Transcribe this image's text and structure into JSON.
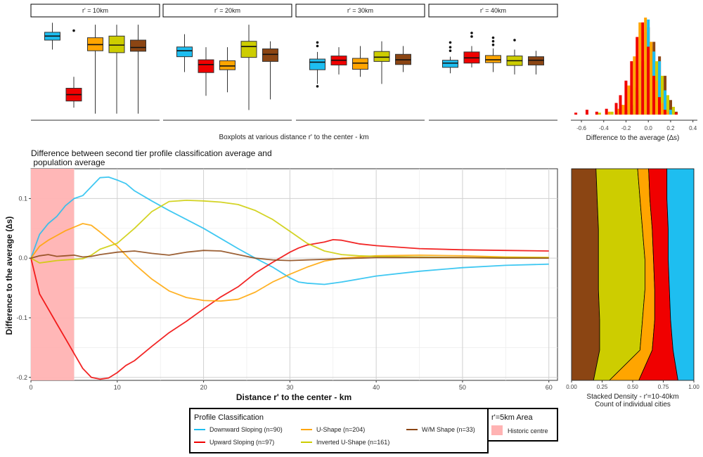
{
  "colors": {
    "downward": "#1EBEF0",
    "upward": "#F00000",
    "ushape": "#FFA500",
    "inverted": "#CDCD00",
    "wm": "#8B4513",
    "historic": "#FFB3B3"
  },
  "boxplots": {
    "caption": "Boxplots at various distance r' to the center - km",
    "panels": [
      {
        "label": "r' = 10km",
        "boxes": [
          {
            "series": "downward",
            "wlo": 0.045,
            "q1": 0.085,
            "med": 0.102,
            "q3": 0.118,
            "whi": 0.158,
            "outliers": []
          },
          {
            "series": "upward",
            "wlo": -0.2,
            "q1": -0.172,
            "med": -0.145,
            "q3": -0.118,
            "whi": -0.07,
            "outliers": [
              0.125
            ]
          },
          {
            "series": "ushape",
            "wlo": -0.225,
            "q1": 0.04,
            "med": 0.066,
            "q3": 0.095,
            "whi": 0.15,
            "outliers": []
          },
          {
            "series": "inverted",
            "wlo": -0.225,
            "q1": 0.032,
            "med": 0.064,
            "q3": 0.102,
            "whi": 0.15,
            "outliers": []
          },
          {
            "series": "wm",
            "wlo": -0.225,
            "q1": 0.038,
            "med": 0.054,
            "q3": 0.085,
            "whi": 0.15,
            "outliers": []
          }
        ]
      },
      {
        "label": "r' = 20km",
        "boxes": [
          {
            "series": "downward",
            "wlo": -0.05,
            "q1": 0.015,
            "med": 0.04,
            "q3": 0.056,
            "whi": 0.11,
            "outliers": []
          },
          {
            "series": "upward",
            "wlo": -0.15,
            "q1": -0.052,
            "med": -0.018,
            "q3": 0.002,
            "whi": 0.055,
            "outliers": []
          },
          {
            "series": "ushape",
            "wlo": -0.135,
            "q1": -0.04,
            "med": -0.024,
            "q3": -0.002,
            "whi": 0.055,
            "outliers": []
          },
          {
            "series": "inverted",
            "wlo": -0.21,
            "q1": 0.012,
            "med": 0.058,
            "q3": 0.08,
            "whi": 0.15,
            "outliers": []
          },
          {
            "series": "wm",
            "wlo": -0.165,
            "q1": -0.005,
            "med": 0.025,
            "q3": 0.048,
            "whi": 0.08,
            "outliers": []
          }
        ]
      },
      {
        "label": "r' = 30km",
        "boxes": [
          {
            "series": "downward",
            "wlo": -0.1,
            "q1": -0.04,
            "med": -0.008,
            "q3": 0.005,
            "whi": 0.035,
            "outliers": [
              0.06,
              0.075,
              -0.11
            ]
          },
          {
            "series": "upward",
            "wlo": -0.06,
            "q1": -0.02,
            "med": 0.0,
            "q3": 0.018,
            "whi": 0.055,
            "outliers": []
          },
          {
            "series": "ushape",
            "wlo": -0.07,
            "q1": -0.038,
            "med": -0.012,
            "q3": 0.008,
            "whi": 0.06,
            "outliers": []
          },
          {
            "series": "inverted",
            "wlo": -0.1,
            "q1": -0.005,
            "med": 0.013,
            "q3": 0.037,
            "whi": 0.08,
            "outliers": []
          },
          {
            "series": "wm",
            "wlo": -0.05,
            "q1": -0.018,
            "med": 0.002,
            "q3": 0.025,
            "whi": 0.06,
            "outliers": []
          }
        ]
      },
      {
        "label": "r' = 40km",
        "boxes": [
          {
            "series": "downward",
            "wlo": -0.055,
            "q1": -0.03,
            "med": -0.012,
            "q3": 0.0,
            "whi": 0.015,
            "outliers": [
              0.04,
              0.055,
              0.075
            ]
          },
          {
            "series": "upward",
            "wlo": -0.03,
            "q1": -0.012,
            "med": 0.01,
            "q3": 0.035,
            "whi": 0.06,
            "outliers": [
              0.1,
              0.115
            ]
          },
          {
            "series": "ushape",
            "wlo": -0.05,
            "q1": -0.01,
            "med": 0.002,
            "q3": 0.02,
            "whi": 0.05,
            "outliers": [
              0.065,
              0.08,
              0.095
            ]
          },
          {
            "series": "inverted",
            "wlo": -0.06,
            "q1": -0.022,
            "med": -0.002,
            "q3": 0.018,
            "whi": 0.045,
            "outliers": [
              0.085
            ]
          },
          {
            "series": "wm",
            "wlo": -0.06,
            "q1": -0.02,
            "med": 0.0,
            "q3": 0.015,
            "whi": 0.04,
            "outliers": []
          }
        ]
      }
    ]
  },
  "histogram": {
    "xlabel": "Difference to the average (∆s)",
    "xticks": [
      "-0.6",
      "-0.4",
      "-0.2",
      "0.0",
      "0.2",
      "0.4"
    ],
    "xlim": [
      -0.72,
      0.44
    ],
    "bins": [
      {
        "center": -0.65,
        "upward": 0.02
      },
      {
        "center": -0.55,
        "upward": 0.05
      },
      {
        "center": -0.45,
        "upward": 0.03,
        "inverted": 0.02
      },
      {
        "center": -0.35,
        "upward": 0.06,
        "ushape": 0.03,
        "inverted": 0.03
      },
      {
        "center": -0.25,
        "upward": 0.12,
        "ushape": 0.06,
        "inverted": 0.1,
        "wm": 0.02
      },
      {
        "center": -0.2,
        "upward": 0.2,
        "ushape": 0.1,
        "inverted": 0.15,
        "downward": 0.05,
        "wm": 0.06
      },
      {
        "center": -0.15,
        "upward": 0.35,
        "ushape": 0.3,
        "inverted": 0.28,
        "downward": 0.1,
        "wm": 0.2
      },
      {
        "center": -0.1,
        "upward": 0.55,
        "ushape": 0.6,
        "inverted": 0.45,
        "downward": 0.25,
        "wm": 0.55
      },
      {
        "center": -0.05,
        "upward": 0.8,
        "ushape": 0.95,
        "inverted": 0.85,
        "downward": 0.5,
        "wm": 0.9
      },
      {
        "center": 0.0,
        "upward": 0.95,
        "ushape": 1.0,
        "inverted": 0.7,
        "downward": 0.98,
        "wm": 0.75
      },
      {
        "center": 0.05,
        "upward": 0.7,
        "ushape": 0.75,
        "inverted": 0.55,
        "downward": 0.65,
        "wm": 0.6
      },
      {
        "center": 0.1,
        "upward": 0.4,
        "ushape": 0.35,
        "inverted": 0.4,
        "downward": 0.55,
        "wm": 0.4
      },
      {
        "center": 0.15,
        "upward": 0.18,
        "ushape": 0.12,
        "inverted": 0.2,
        "downward": 0.25,
        "wm": 0.15
      },
      {
        "center": 0.2,
        "upward": 0.05,
        "ushape": 0.03,
        "inverted": 0.08,
        "downward": 0.05,
        "wm": 0.03
      },
      {
        "center": 0.25,
        "upward": 0.02
      }
    ]
  },
  "main": {
    "title": "Difference between second tier profile classification average and\n population average",
    "xlabel": "Distance r' to the center - km",
    "ylabel": "Difference to the average (∆s)",
    "xlim": [
      0,
      61
    ],
    "ylim": [
      -0.205,
      0.15
    ],
    "xticks": [
      0,
      10,
      20,
      30,
      40,
      50,
      60
    ],
    "yticks": [
      -0.2,
      -0.1,
      0.0,
      0.1
    ],
    "ytick_labels": [
      "-0.2",
      "-0.1",
      "0.0",
      "0.1"
    ],
    "historic_range": [
      0,
      5
    ]
  },
  "chart_data": {
    "type": "line",
    "title": "Difference between second tier profile classification average and population average",
    "xlabel": "Distance r' to the center - km",
    "ylabel": "Difference to the average (∆s)",
    "xlim": [
      0,
      61
    ],
    "ylim": [
      -0.205,
      0.15
    ],
    "series": [
      {
        "key": "downward",
        "name": "Downward Sloping (n=90)",
        "x": [
          0,
          1,
          2,
          3,
          4,
          5,
          6,
          7,
          8,
          9,
          10,
          11,
          12,
          14,
          16,
          18,
          20,
          22,
          24,
          26,
          28,
          30,
          31,
          32,
          34,
          36,
          38,
          40,
          45,
          50,
          55,
          60
        ],
        "y": [
          0.0,
          0.04,
          0.058,
          0.07,
          0.088,
          0.1,
          0.105,
          0.12,
          0.135,
          0.136,
          0.131,
          0.125,
          0.113,
          0.096,
          0.08,
          0.065,
          0.05,
          0.033,
          0.016,
          0.0,
          -0.015,
          -0.033,
          -0.04,
          -0.042,
          -0.044,
          -0.04,
          -0.035,
          -0.03,
          -0.022,
          -0.016,
          -0.012,
          -0.01
        ]
      },
      {
        "key": "upward",
        "name": "Upward Sloping (n=97)",
        "x": [
          0,
          1,
          2,
          3,
          4,
          5,
          6,
          7,
          8,
          9,
          10,
          11,
          12,
          14,
          16,
          18,
          20,
          22,
          24,
          26,
          28,
          30,
          31,
          32,
          34,
          35,
          36,
          38,
          40,
          45,
          50,
          55,
          60
        ],
        "y": [
          0.0,
          -0.06,
          -0.085,
          -0.11,
          -0.135,
          -0.16,
          -0.185,
          -0.2,
          -0.203,
          -0.201,
          -0.192,
          -0.18,
          -0.172,
          -0.148,
          -0.125,
          -0.106,
          -0.085,
          -0.065,
          -0.048,
          -0.025,
          -0.007,
          0.01,
          0.017,
          0.022,
          0.027,
          0.031,
          0.03,
          0.024,
          0.021,
          0.016,
          0.014,
          0.013,
          0.012
        ]
      },
      {
        "key": "ushape",
        "name": "U-Shape (n=204)",
        "x": [
          0,
          1,
          2,
          3,
          4,
          5,
          6,
          7,
          8,
          10,
          12,
          14,
          16,
          18,
          20,
          22,
          24,
          26,
          28,
          30,
          32,
          34,
          36,
          38,
          40,
          45,
          50,
          55,
          60
        ],
        "y": [
          0.0,
          0.02,
          0.03,
          0.038,
          0.046,
          0.052,
          0.058,
          0.055,
          0.044,
          0.02,
          -0.01,
          -0.035,
          -0.055,
          -0.066,
          -0.071,
          -0.072,
          -0.069,
          -0.057,
          -0.04,
          -0.027,
          -0.015,
          -0.005,
          0.0,
          0.002,
          0.004,
          0.005,
          0.004,
          0.002,
          0.001
        ]
      },
      {
        "key": "inverted",
        "name": "Inverted U-Shape (n=161)",
        "x": [
          0,
          1,
          2,
          3,
          4,
          5,
          6,
          7,
          8,
          10,
          12,
          14,
          16,
          18,
          20,
          22,
          24,
          26,
          28,
          30,
          32,
          34,
          36,
          38,
          40,
          45,
          50,
          55,
          60
        ],
        "y": [
          0.0,
          -0.008,
          -0.006,
          -0.004,
          -0.003,
          -0.002,
          -0.001,
          0.005,
          0.015,
          0.025,
          0.05,
          0.078,
          0.095,
          0.097,
          0.096,
          0.094,
          0.09,
          0.08,
          0.065,
          0.045,
          0.025,
          0.012,
          0.006,
          0.004,
          0.003,
          0.002,
          0.001,
          0.001,
          0.001
        ]
      },
      {
        "key": "wm",
        "name": "W/M Shape (n=33)",
        "x": [
          0,
          1,
          2,
          3,
          4,
          5,
          6,
          7,
          8,
          10,
          12,
          14,
          16,
          18,
          20,
          22,
          24,
          26,
          28,
          30,
          32,
          34,
          36,
          38,
          40,
          45,
          50,
          55,
          60
        ],
        "y": [
          0.0,
          0.004,
          0.006,
          0.003,
          0.004,
          0.005,
          0.002,
          0.003,
          0.006,
          0.01,
          0.012,
          0.008,
          0.005,
          0.01,
          0.013,
          0.012,
          0.006,
          0.0,
          -0.003,
          -0.004,
          -0.003,
          -0.002,
          -0.001,
          0.0,
          0.001,
          0.001,
          0.001,
          0.0,
          0.0
        ]
      }
    ]
  },
  "density": {
    "xticks": [
      "0.00",
      "0.25",
      "0.50",
      "0.75",
      "1.00"
    ],
    "caption_line1": "Stacked Density - r'=10-40km",
    "caption_line2": "Count of individual cities",
    "order": [
      "wm",
      "inverted",
      "ushape",
      "upward",
      "downward"
    ],
    "cumulative_bounds": [
      {
        "y": 0.15,
        "b": [
          0.2,
          0.54,
          0.63,
          0.78
        ]
      },
      {
        "y": 0.1,
        "b": [
          0.21,
          0.56,
          0.64,
          0.78
        ]
      },
      {
        "y": 0.05,
        "b": [
          0.22,
          0.58,
          0.66,
          0.79
        ]
      },
      {
        "y": 0.0,
        "b": [
          0.22,
          0.6,
          0.67,
          0.79
        ]
      },
      {
        "y": -0.05,
        "b": [
          0.22,
          0.6,
          0.68,
          0.8
        ]
      },
      {
        "y": -0.1,
        "b": [
          0.23,
          0.58,
          0.68,
          0.81
        ]
      },
      {
        "y": -0.15,
        "b": [
          0.23,
          0.56,
          0.66,
          0.83
        ]
      },
      {
        "y": -0.2,
        "b": [
          0.18,
          0.31,
          0.55,
          0.87
        ]
      }
    ]
  },
  "legend": {
    "title": "Profile Classification",
    "items": [
      {
        "key": "downward",
        "label": "Downward Sloping (n=90)"
      },
      {
        "key": "upward",
        "label": "Upward Sloping (n=97)"
      },
      {
        "key": "ushape",
        "label": "U-Shape (n=204)"
      },
      {
        "key": "inverted",
        "label": "Inverted U-Shape (n=161)"
      },
      {
        "key": "wm",
        "label": "W/M Shape (n=33)"
      }
    ],
    "area_title": "r'=5km Area",
    "area_label": "Historic centre"
  }
}
